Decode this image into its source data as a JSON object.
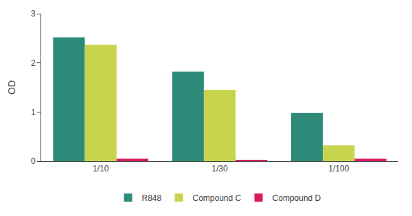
{
  "chart_data": {
    "type": "bar",
    "categories": [
      "1/10",
      "1/30",
      "1/100"
    ],
    "series": [
      {
        "name": "R848",
        "color": "#2e8b7a",
        "values": [
          2.52,
          1.82,
          0.98
        ]
      },
      {
        "name": "Compound C",
        "color": "#c8d44e",
        "values": [
          2.37,
          1.45,
          0.32
        ]
      },
      {
        "name": "Compound D",
        "color": "#d81b60",
        "values": [
          0.05,
          0.02,
          0.05
        ]
      }
    ],
    "ylabel": "OD",
    "ylim": [
      0,
      3
    ],
    "yticks": [
      0,
      1,
      2,
      3
    ],
    "grid": false,
    "legend": "bottom"
  }
}
